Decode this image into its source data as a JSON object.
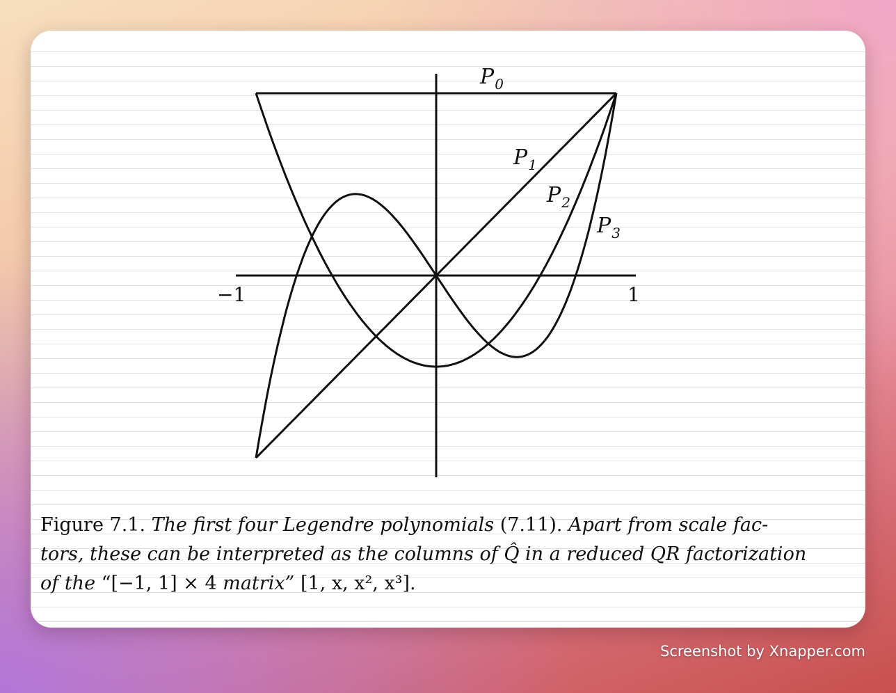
{
  "figure": {
    "labels": {
      "p0": {
        "main": "P",
        "sub": "0"
      },
      "p1": {
        "main": "P",
        "sub": "1"
      },
      "p2": {
        "main": "P",
        "sub": "2"
      },
      "p3": {
        "main": "P",
        "sub": "3"
      }
    },
    "ticks": {
      "left": "−1",
      "right": "1"
    }
  },
  "chart_data": {
    "type": "line",
    "x_range": [
      -1,
      1
    ],
    "series": [
      {
        "name": "P0",
        "formula": "1"
      },
      {
        "name": "P1",
        "formula": "x"
      },
      {
        "name": "P2",
        "formula": "(3x^2-1)/2"
      },
      {
        "name": "P3",
        "formula": "(5x^3-3x)/2"
      }
    ]
  },
  "caption": {
    "label": "Figure 7.1.",
    "line1_italic_a": "The first four Legendre polynomials",
    "line1_ref": "(7.11).",
    "line1_italic_b": "Apart from scale fac-",
    "line2": "tors, these can be interpreted as the columns of Q̂ in a reduced QR factorization",
    "line3_italic_a": "of the",
    "line3_quote": "“[−1, 1] × 4",
    "line3_italic_b": "matrix”",
    "line3_tail": "[1, x, x², x³]."
  },
  "watermark": "Screenshot by Xnapper.com"
}
